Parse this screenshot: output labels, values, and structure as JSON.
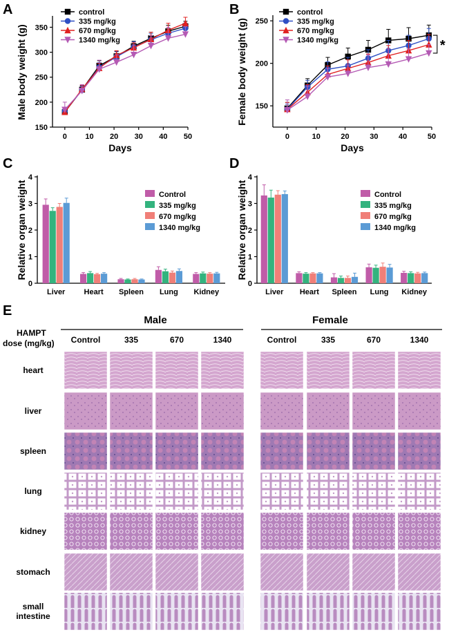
{
  "chart_data": [
    {
      "panel": "A",
      "type": "line",
      "xlabel": "Days",
      "ylabel": "Male body weight (g)",
      "xlim": [
        -5,
        50
      ],
      "ylim": [
        150,
        370
      ],
      "xticks": [
        "0",
        "10",
        "20",
        "30",
        "40",
        "50"
      ],
      "yticks": [
        "150",
        "200",
        "250",
        "300",
        "350"
      ],
      "x": [
        0,
        7,
        14,
        21,
        28,
        35,
        42,
        49
      ],
      "legend_position": "top-left",
      "series": [
        {
          "name": "control",
          "color": "#000000",
          "marker": "square",
          "values": [
            180,
            225,
            273,
            292,
            312,
            328,
            342,
            352
          ],
          "errors": [
            6,
            8,
            10,
            10,
            10,
            12,
            12,
            10
          ]
        },
        {
          "name": "335  mg/kg",
          "color": "#2e4fc4",
          "marker": "circle",
          "values": [
            182,
            224,
            270,
            291,
            310,
            325,
            338,
            348
          ],
          "errors": [
            7,
            8,
            9,
            10,
            11,
            12,
            12,
            10
          ]
        },
        {
          "name": "670  mg/kg",
          "color": "#e02020",
          "marker": "triangle",
          "values": [
            180,
            226,
            268,
            294,
            309,
            326,
            344,
            358
          ],
          "errors": [
            8,
            8,
            10,
            9,
            10,
            14,
            14,
            12
          ]
        },
        {
          "name": "1340 mg/kg",
          "color": "#b45ab4",
          "marker": "triangle-down",
          "values": [
            185,
            223,
            266,
            280,
            295,
            313,
            328,
            336
          ],
          "errors": [
            15,
            12,
            18,
            15,
            20,
            20,
            22,
            15
          ]
        }
      ]
    },
    {
      "panel": "B",
      "type": "line",
      "xlabel": "Days",
      "ylabel": "Female body weight (g)",
      "xlim": [
        -5,
        50
      ],
      "ylim": [
        125,
        255
      ],
      "xticks": [
        "0",
        "10",
        "20",
        "30",
        "40",
        "50"
      ],
      "yticks": [
        "150",
        "200",
        "250"
      ],
      "x": [
        0,
        7,
        14,
        21,
        28,
        35,
        42,
        49
      ],
      "legend_position": "top-left",
      "annotation": "*",
      "series": [
        {
          "name": "control",
          "color": "#000000",
          "marker": "square",
          "values": [
            147,
            174,
            198,
            208,
            216,
            227,
            229,
            233
          ],
          "errors": [
            7,
            8,
            9,
            10,
            11,
            13,
            13,
            12
          ]
        },
        {
          "name": "335  mg/kg",
          "color": "#2e4fc4",
          "marker": "circle",
          "values": [
            146,
            172,
            193,
            197,
            206,
            215,
            221,
            229
          ],
          "errors": [
            6,
            8,
            9,
            10,
            10,
            12,
            12,
            12
          ]
        },
        {
          "name": "670  mg/kg",
          "color": "#e02020",
          "marker": "triangle",
          "values": [
            146,
            166,
            187,
            194,
            201,
            209,
            215,
            222
          ],
          "errors": [
            8,
            9,
            10,
            10,
            10,
            12,
            12,
            12
          ]
        },
        {
          "name": "1340 mg/kg",
          "color": "#b45ab4",
          "marker": "triangle-down",
          "values": [
            145,
            161,
            184,
            188,
            195,
            199,
            205,
            212
          ],
          "errors": [
            12,
            12,
            10,
            10,
            15,
            18,
            12,
            10
          ]
        }
      ]
    },
    {
      "panel": "C",
      "type": "bar",
      "ylabel": "Relative organ weight",
      "ylim": [
        0,
        4
      ],
      "yticks": [
        "0",
        "1",
        "2",
        "3",
        "4"
      ],
      "categories": [
        "Liver",
        "Heart",
        "Spleen",
        "Lung",
        "Kidney"
      ],
      "legend_position": "right",
      "series": [
        {
          "name": "Control",
          "color": "#c05ca8",
          "values": [
            2.95,
            0.35,
            0.15,
            0.5,
            0.35
          ],
          "errors": [
            0.22,
            0.05,
            0.03,
            0.12,
            0.05
          ]
        },
        {
          "name": "335 mg/kg",
          "color": "#33b37e",
          "values": [
            2.72,
            0.38,
            0.14,
            0.45,
            0.37
          ],
          "errors": [
            0.12,
            0.06,
            0.02,
            0.08,
            0.05
          ]
        },
        {
          "name": "670 mg/kg",
          "color": "#f07f78",
          "values": [
            2.87,
            0.34,
            0.15,
            0.4,
            0.36
          ],
          "errors": [
            0.13,
            0.03,
            0.03,
            0.06,
            0.04
          ]
        },
        {
          "name": "1340 mg/kg",
          "color": "#5b9bd5",
          "values": [
            3.02,
            0.36,
            0.14,
            0.46,
            0.37
          ],
          "errors": [
            0.18,
            0.04,
            0.02,
            0.08,
            0.04
          ]
        }
      ]
    },
    {
      "panel": "D",
      "type": "bar",
      "ylabel": "Relative organ weight",
      "ylim": [
        0,
        4
      ],
      "yticks": [
        "0",
        "1",
        "2",
        "3",
        "4"
      ],
      "categories": [
        "Liver",
        "Heart",
        "Spleen",
        "Lung",
        "Kidney"
      ],
      "legend_position": "right",
      "series": [
        {
          "name": "Control",
          "color": "#c05ca8",
          "values": [
            3.3,
            0.38,
            0.22,
            0.6,
            0.39
          ],
          "errors": [
            0.4,
            0.05,
            0.14,
            0.12,
            0.06
          ]
        },
        {
          "name": "335 mg/kg",
          "color": "#33b37e",
          "values": [
            3.22,
            0.36,
            0.2,
            0.58,
            0.38
          ],
          "errors": [
            0.28,
            0.04,
            0.07,
            0.1,
            0.05
          ]
        },
        {
          "name": "670 mg/kg",
          "color": "#f07f78",
          "values": [
            3.33,
            0.37,
            0.2,
            0.62,
            0.37
          ],
          "errors": [
            0.15,
            0.03,
            0.07,
            0.14,
            0.04
          ]
        },
        {
          "name": "1340 mg/kg",
          "color": "#5b9bd5",
          "values": [
            3.35,
            0.37,
            0.24,
            0.59,
            0.38
          ],
          "errors": [
            0.12,
            0.03,
            0.14,
            0.12,
            0.04
          ]
        }
      ]
    }
  ],
  "panel_e": {
    "letter": "E",
    "row_header": [
      "HAMPT",
      "dose (mg/kg)"
    ],
    "groups": [
      {
        "name": "Male",
        "doses": [
          "Control",
          "335",
          "670",
          "1340"
        ]
      },
      {
        "name": "Female",
        "doses": [
          "Control",
          "335",
          "670",
          "1340"
        ]
      }
    ],
    "tissues": [
      {
        "label": [
          "heart"
        ],
        "style": "heart"
      },
      {
        "label": [
          "liver"
        ],
        "style": "liver"
      },
      {
        "label": [
          "spleen"
        ],
        "style": "spleen"
      },
      {
        "label": [
          "lung"
        ],
        "style": "lung"
      },
      {
        "label": [
          "kidney"
        ],
        "style": "kidney"
      },
      {
        "label": [
          "stomach"
        ],
        "style": "stomach"
      },
      {
        "label": [
          "small",
          "intestine"
        ],
        "style": "intestine"
      }
    ],
    "tissue_colors": {
      "heart": "#d4a6cf",
      "liver": "#cb9ac6",
      "spleen": "#9f79b3",
      "lung": "#c39ac8",
      "kidney": "#b783bd",
      "stomach": "#c9a0cb",
      "intestine": "#b98cc0"
    }
  }
}
